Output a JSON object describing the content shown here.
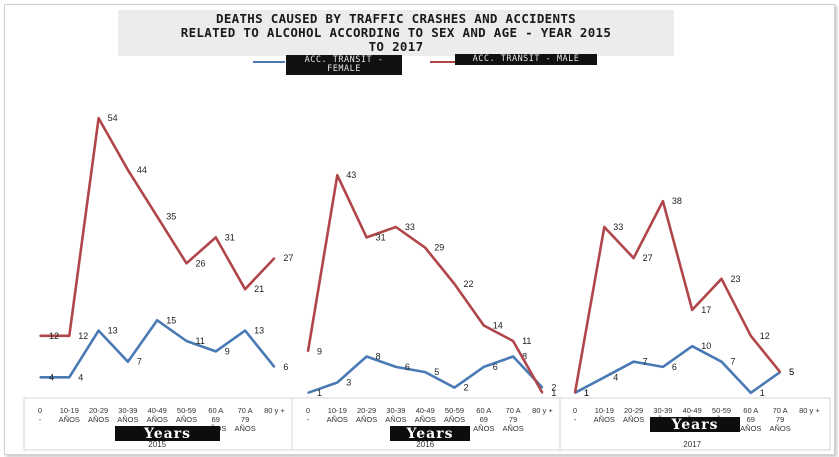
{
  "colors": {
    "female": "#4a7ab4",
    "male": "#b0464a"
  },
  "title_lines": [
    "DEATHS CAUSED BY TRAFFIC CRASHES AND ACCIDENTS",
    "RELATED TO ALCOHOL ACCORDING TO SEX AND AGE - YEAR 2015",
    "TO 2017"
  ],
  "legend": {
    "female": "ACC. TRANSIT - FEMALE",
    "male": "ACC. TRANSIT - MALE"
  },
  "chart_data": {
    "type": "line",
    "title": "DEATHS CAUSED BY TRAFFIC CRASHES AND ACCIDENTS RELATED TO ALCOHOL ACCORDING TO SEX AND AGE - YEAR 2015 TO 2017",
    "xlabel": "Years",
    "ylabel": "",
    "grid": false,
    "legend_position": "top",
    "age_groups": [
      "0 - 9 AÑOS",
      "10-19 AÑOS",
      "20-29 AÑOS",
      "30-39 AÑOS",
      "40-49 AÑOS",
      "50-59 AÑOS",
      "60 A 69 AÑOS",
      "70 A 79 AÑOS",
      "80 y +"
    ],
    "years": [
      "2015",
      "2016",
      "2017"
    ],
    "series": [
      {
        "name": "ACC. TRANSIT - FEMALE",
        "values": {
          "2015": [
            4,
            4,
            13,
            7,
            15,
            11,
            9,
            13,
            6
          ],
          "2016": [
            1,
            3,
            8,
            6,
            5,
            2,
            6,
            8,
            2
          ],
          "2017": [
            1,
            4,
            7,
            6,
            10,
            7,
            1,
            5,
            null
          ]
        }
      },
      {
        "name": "ACC. TRANSIT - MALE",
        "values": {
          "2015": [
            12,
            12,
            54,
            44,
            35,
            26,
            31,
            21,
            27
          ],
          "2016": [
            9,
            43,
            31,
            33,
            29,
            22,
            14,
            11,
            1
          ],
          "2017": [
            1,
            33,
            27,
            38,
            17,
            23,
            12,
            5,
            null
          ]
        }
      }
    ]
  }
}
